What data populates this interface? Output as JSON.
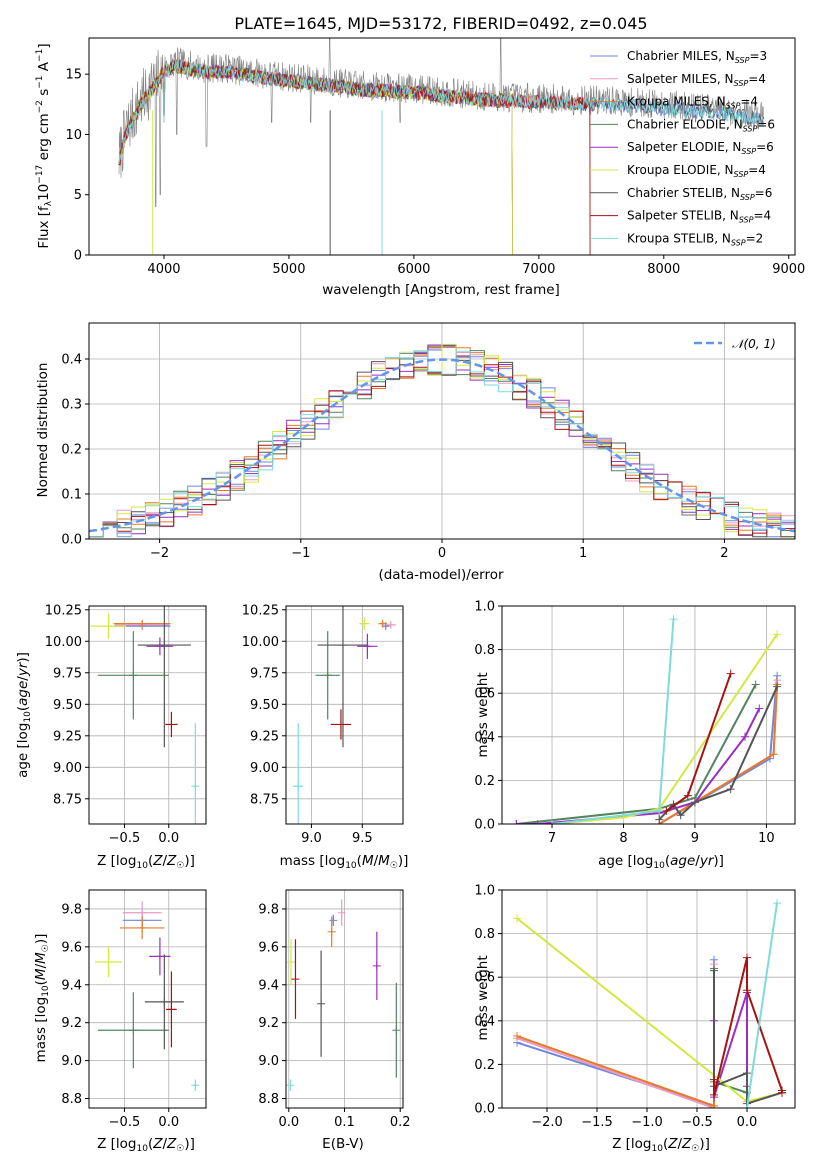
{
  "colors": {
    "Chabrier MILES": "#6f86dc",
    "Salpeter MILES": "#e89bc4",
    "Kroupa MILES": "#e8792b",
    "Chabrier ELODIE": "#52845f",
    "Salpeter ELODIE": "#9a2fbf",
    "Kroupa ELODIE": "#d4e842",
    "Chabrier STELIB": "#555555",
    "Salpeter STELIB": "#a61313",
    "Kroupa STELIB": "#7fdadb"
  },
  "chart_data": [
    {
      "id": "spectrum",
      "type": "line",
      "title": "PLATE=1645, MJD=53172, FIBERID=0492, z=0.045",
      "xlabel": "wavelength [Angstrom, rest frame]",
      "ylabel": "Flux [fλ10⁻¹⁷ erg cm⁻² s⁻¹ A⁻¹]",
      "xlim": [
        3400,
        9050
      ],
      "ylim": [
        0,
        18
      ],
      "xticks": [
        4000,
        5000,
        6000,
        7000,
        8000,
        9000
      ],
      "yticks": [
        0,
        5,
        10,
        15
      ],
      "legend_position": "top-right",
      "data_color": "#808080",
      "data_continuum": [
        [
          3640,
          8.0
        ],
        [
          3700,
          10.5
        ],
        [
          3800,
          12.5
        ],
        [
          3900,
          14.0
        ],
        [
          4000,
          15.5
        ],
        [
          4100,
          16.0
        ],
        [
          4300,
          15.5
        ],
        [
          4500,
          15.5
        ],
        [
          4800,
          15.0
        ],
        [
          5200,
          14.5
        ],
        [
          5600,
          14.0
        ],
        [
          6000,
          13.8
        ],
        [
          6500,
          13.2
        ],
        [
          7000,
          13.0
        ],
        [
          7500,
          12.8
        ],
        [
          8000,
          12.5
        ],
        [
          8500,
          12.0
        ],
        [
          8800,
          11.5
        ]
      ],
      "legend": [
        {
          "model": "Chabrier MILES",
          "label": "Chabrier MILES, N",
          "sub": "SSP",
          "tail": "=3",
          "xmax": 8800
        },
        {
          "model": "Salpeter MILES",
          "label": "Salpeter MILES, N",
          "sub": "SSP",
          "tail": "=4",
          "xmax": 7410
        },
        {
          "model": "Kroupa MILES",
          "label": "Kroupa MILES, N",
          "sub": "SSP",
          "tail": "=4",
          "xmax": 7410
        },
        {
          "model": "Chabrier ELODIE",
          "label": "Chabrier ELODIE, N",
          "sub": "SSP",
          "tail": "=6",
          "xmax": 6790
        },
        {
          "model": "Salpeter ELODIE",
          "label": "Salpeter ELODIE, N",
          "sub": "SSP",
          "tail": "=6",
          "xmax": 6790
        },
        {
          "model": "Kroupa ELODIE",
          "label": "Kroupa ELODIE, N",
          "sub": "SSP",
          "tail": "=4",
          "xmax": 6790
        },
        {
          "model": "Chabrier STELIB",
          "label": "Chabrier STELIB, N",
          "sub": "SSP",
          "tail": "=6",
          "xmax": 8800
        },
        {
          "model": "Salpeter STELIB",
          "label": "Salpeter STELIB, N",
          "sub": "SSP",
          "tail": "=4",
          "xmax": 7410
        },
        {
          "model": "Kroupa STELIB",
          "label": "Kroupa STELIB, N",
          "sub": "SSP",
          "tail": "=2",
          "xmax": 8800
        }
      ]
    },
    {
      "id": "residuals",
      "type": "histogram",
      "xlabel": "(data-model)/error",
      "ylabel": "Normed distribution",
      "xlim": [
        -2.5,
        2.5
      ],
      "ylim": [
        0,
        0.48
      ],
      "xticks": [
        -2,
        -1,
        0,
        1,
        2
      ],
      "yticks": [
        0.0,
        0.1,
        0.2,
        0.3,
        0.4
      ],
      "grid": true,
      "bin_width": 0.1,
      "bin_start": -2.5,
      "reference_curve": {
        "label": "𝒩(0, 1)",
        "mean": 0,
        "sigma": 1,
        "color": "#6495ed"
      },
      "legend_position": "top-right"
    },
    {
      "id": "age-vs-z",
      "type": "errorbar",
      "xlabel": "Z [log₁₀(Z/Z☉)]",
      "ylabel": "age  [log₁₀(age/yr)]",
      "xlim": [
        -0.9,
        0.42
      ],
      "ylim": [
        8.55,
        10.28
      ],
      "xticks": [
        -0.5,
        0.0
      ],
      "yticks": [
        8.75,
        9.0,
        9.25,
        9.5,
        9.75,
        10.0,
        10.25
      ],
      "grid": true,
      "points": [
        {
          "model": "Chabrier MILES",
          "x": -0.3,
          "y": 10.12,
          "xerr": 0.32,
          "yerr": 0.02
        },
        {
          "model": "Salpeter MILES",
          "x": -0.3,
          "y": 10.13,
          "xerr": 0.31,
          "yerr": 0.02
        },
        {
          "model": "Kroupa MILES",
          "x": -0.3,
          "y": 10.14,
          "xerr": 0.32,
          "yerr": 0.02
        },
        {
          "model": "Chabrier ELODIE",
          "x": -0.4,
          "y": 9.73,
          "xerr": 0.4,
          "yerr": 0.35
        },
        {
          "model": "Salpeter ELODIE",
          "x": -0.1,
          "y": 9.96,
          "xerr": 0.15,
          "yerr": 0.07
        },
        {
          "model": "Kroupa ELODIE",
          "x": -0.68,
          "y": 10.12,
          "xerr": 0.2,
          "yerr": 0.1
        },
        {
          "model": "Chabrier STELIB",
          "x": -0.05,
          "y": 9.97,
          "xerr": 0.3,
          "yerr": 0.81
        },
        {
          "model": "Salpeter STELIB",
          "x": 0.03,
          "y": 9.34,
          "xerr": 0.07,
          "yerr": 0.1
        },
        {
          "model": "Kroupa STELIB",
          "x": 0.3,
          "y": 8.85,
          "xerr": 0.02,
          "yerr": 0.5
        }
      ]
    },
    {
      "id": "age-vs-mass",
      "type": "errorbar",
      "xlabel": "mass [log₁₀(M/M☉)]",
      "ylabel": "",
      "xlim": [
        8.75,
        9.9
      ],
      "ylim": [
        8.55,
        10.28
      ],
      "xticks": [
        9.0,
        9.5
      ],
      "yticks": [
        8.75,
        9.0,
        9.25,
        9.5,
        9.75,
        10.0,
        10.25
      ],
      "grid": true,
      "points": [
        {
          "model": "Chabrier MILES",
          "x": 9.73,
          "y": 10.12,
          "xerr": 0.03,
          "yerr": 0.02
        },
        {
          "model": "Salpeter MILES",
          "x": 9.78,
          "y": 10.13,
          "xerr": 0.05,
          "yerr": 0.02
        },
        {
          "model": "Kroupa MILES",
          "x": 9.7,
          "y": 10.14,
          "xerr": 0.04,
          "yerr": 0.02
        },
        {
          "model": "Chabrier ELODIE",
          "x": 9.16,
          "y": 9.73,
          "xerr": 0.12,
          "yerr": 0.35
        },
        {
          "model": "Salpeter ELODIE",
          "x": 9.55,
          "y": 9.96,
          "xerr": 0.1,
          "yerr": 0.1
        },
        {
          "model": "Kroupa ELODIE",
          "x": 9.52,
          "y": 10.14,
          "xerr": 0.05,
          "yerr": 0.05
        },
        {
          "model": "Chabrier STELIB",
          "x": 9.31,
          "y": 9.97,
          "xerr": 0.25,
          "yerr": 0.81
        },
        {
          "model": "Salpeter STELIB",
          "x": 9.29,
          "y": 9.34,
          "xerr": 0.1,
          "yerr": 0.12
        },
        {
          "model": "Kroupa STELIB",
          "x": 8.87,
          "y": 8.85,
          "xerr": 0.05,
          "yerr": 0.5
        }
      ]
    },
    {
      "id": "mass-weight-vs-age",
      "type": "line",
      "xlabel": "age  [log₁₀(age/yr)]",
      "ylabel": "mass weight",
      "xlim": [
        6.3,
        10.4
      ],
      "ylim": [
        0,
        1
      ],
      "xticks": [
        7,
        8,
        9,
        10
      ],
      "yticks": [
        0.0,
        0.2,
        0.4,
        0.6,
        0.8,
        1.0
      ],
      "grid": true,
      "series": [
        {
          "model": "Chabrier MILES",
          "x": [
            8.5,
            10.05,
            10.15
          ],
          "y": [
            0.0,
            0.3,
            0.68
          ]
        },
        {
          "model": "Salpeter MILES",
          "x": [
            8.5,
            10.1,
            10.15
          ],
          "y": [
            0.0,
            0.32,
            0.66
          ]
        },
        {
          "model": "Kroupa MILES",
          "x": [
            8.5,
            10.1,
            10.15
          ],
          "y": [
            0.0,
            0.32,
            0.64
          ]
        },
        {
          "model": "Chabrier ELODIE",
          "x": [
            6.5,
            8.5,
            9.0,
            9.85
          ],
          "y": [
            0.0,
            0.07,
            0.12,
            0.64
          ]
        },
        {
          "model": "Salpeter ELODIE",
          "x": [
            6.5,
            6.8,
            8.5,
            9.0,
            9.7,
            9.9
          ],
          "y": [
            0.0,
            0.0,
            0.05,
            0.1,
            0.4,
            0.53
          ]
        },
        {
          "model": "Kroupa ELODIE",
          "x": [
            7.0,
            8.0,
            8.5,
            10.15
          ],
          "y": [
            0.0,
            0.03,
            0.07,
            0.87
          ]
        },
        {
          "model": "Chabrier STELIB",
          "x": [
            8.5,
            8.7,
            8.8,
            9.0,
            9.5,
            10.15
          ],
          "y": [
            0.02,
            0.09,
            0.04,
            0.1,
            0.16,
            0.63
          ]
        },
        {
          "model": "Salpeter STELIB",
          "x": [
            8.6,
            8.9,
            9.5
          ],
          "y": [
            0.06,
            0.13,
            0.69
          ]
        },
        {
          "model": "Kroupa STELIB",
          "x": [
            7.0,
            8.5,
            8.7
          ],
          "y": [
            0.0,
            0.06,
            0.94
          ]
        }
      ]
    },
    {
      "id": "mass-vs-z",
      "type": "errorbar",
      "xlabel": "Z [log₁₀(Z/Z☉)]",
      "ylabel": "mass [log₁₀(M/M☉)]",
      "xlim": [
        -0.9,
        0.42
      ],
      "ylim": [
        8.75,
        9.9
      ],
      "xticks": [
        -0.5,
        0.0
      ],
      "yticks": [
        8.8,
        9.0,
        9.2,
        9.4,
        9.6,
        9.8
      ],
      "grid": true,
      "points": [
        {
          "model": "Chabrier MILES",
          "x": -0.3,
          "y": 9.74,
          "xerr": 0.22,
          "yerr": 0.03
        },
        {
          "model": "Salpeter MILES",
          "x": -0.3,
          "y": 9.78,
          "xerr": 0.22,
          "yerr": 0.06
        },
        {
          "model": "Kroupa MILES",
          "x": -0.3,
          "y": 9.7,
          "xerr": 0.25,
          "yerr": 0.06
        },
        {
          "model": "Chabrier ELODIE",
          "x": -0.4,
          "y": 9.16,
          "xerr": 0.4,
          "yerr": 0.2
        },
        {
          "model": "Salpeter ELODIE",
          "x": -0.1,
          "y": 9.55,
          "xerr": 0.12,
          "yerr": 0.1
        },
        {
          "model": "Kroupa ELODIE",
          "x": -0.68,
          "y": 9.52,
          "xerr": 0.15,
          "yerr": 0.08
        },
        {
          "model": "Chabrier STELIB",
          "x": -0.05,
          "y": 9.31,
          "xerr": 0.22,
          "yerr": 0.25
        },
        {
          "model": "Salpeter STELIB",
          "x": 0.03,
          "y": 9.27,
          "xerr": 0.06,
          "yerr": 0.2
        },
        {
          "model": "Kroupa STELIB",
          "x": 0.3,
          "y": 8.87,
          "xerr": 0.02,
          "yerr": 0.03
        }
      ]
    },
    {
      "id": "mass-vs-ebv",
      "type": "errorbar",
      "xlabel": "E(B-V)",
      "ylabel": "",
      "xlim": [
        -0.005,
        0.205
      ],
      "ylim": [
        8.75,
        9.9
      ],
      "xticks": [
        0.0,
        0.1,
        0.2
      ],
      "yticks": [
        8.8,
        9.0,
        9.2,
        9.4,
        9.6,
        9.8
      ],
      "grid": true,
      "points": [
        {
          "model": "Chabrier MILES",
          "x": 0.08,
          "y": 9.74,
          "xerr": 0,
          "yerr": 0.03
        },
        {
          "model": "Salpeter MILES",
          "x": 0.095,
          "y": 9.78,
          "xerr": 0,
          "yerr": 0.07
        },
        {
          "model": "Kroupa MILES",
          "x": 0.077,
          "y": 9.68,
          "xerr": 0,
          "yerr": 0.08
        },
        {
          "model": "Chabrier ELODIE",
          "x": 0.193,
          "y": 9.16,
          "xerr": 0,
          "yerr": 0.25
        },
        {
          "model": "Salpeter ELODIE",
          "x": 0.158,
          "y": 9.5,
          "xerr": 0,
          "yerr": 0.18
        },
        {
          "model": "Kroupa ELODIE",
          "x": 0.004,
          "y": 9.52,
          "xerr": 0,
          "yerr": 0.12
        },
        {
          "model": "Chabrier STELIB",
          "x": 0.058,
          "y": 9.3,
          "xerr": 0,
          "yerr": 0.28
        },
        {
          "model": "Salpeter STELIB",
          "x": 0.012,
          "y": 9.43,
          "xerr": 0,
          "yerr": 0.21
        },
        {
          "model": "Kroupa STELIB",
          "x": 0.003,
          "y": 8.87,
          "xerr": 0,
          "yerr": 0.03
        }
      ]
    },
    {
      "id": "mass-weight-vs-z",
      "type": "line",
      "xlabel": "Z [log₁₀(Z/Z☉)]",
      "ylabel": "mass weight",
      "xlim": [
        -2.45,
        0.48
      ],
      "ylim": [
        0,
        1
      ],
      "xticks": [
        -2.0,
        -1.5,
        -1.0,
        -0.5,
        0.0
      ],
      "yticks": [
        0.0,
        0.2,
        0.4,
        0.6,
        0.8,
        1.0
      ],
      "grid": true,
      "series": [
        {
          "model": "Chabrier MILES",
          "x": [
            -2.3,
            -0.33,
            -0.33
          ],
          "y": [
            0.3,
            0.01,
            0.68
          ]
        },
        {
          "model": "Salpeter MILES",
          "x": [
            -2.3,
            -0.33,
            -0.33
          ],
          "y": [
            0.32,
            0.0,
            0.66
          ]
        },
        {
          "model": "Kroupa MILES",
          "x": [
            -2.3,
            -0.33,
            -0.33
          ],
          "y": [
            0.33,
            0.01,
            0.64
          ]
        },
        {
          "model": "Chabrier ELODIE",
          "x": [
            -0.33,
            -0.33,
            0.0,
            0.0
          ],
          "y": [
            0.64,
            0.12,
            0.07,
            0.0
          ]
        },
        {
          "model": "Salpeter ELODIE",
          "x": [
            -0.33,
            -0.33,
            0.0,
            0.0
          ],
          "y": [
            0.4,
            0.05,
            0.53,
            0.1
          ]
        },
        {
          "model": "Kroupa ELODIE",
          "x": [
            -2.3,
            0.0,
            0.35
          ],
          "y": [
            0.87,
            0.03,
            0.07
          ]
        },
        {
          "model": "Chabrier STELIB",
          "x": [
            -0.33,
            -0.33,
            0.0,
            0.0,
            0.35
          ],
          "y": [
            0.63,
            0.1,
            0.16,
            0.02,
            0.07
          ]
        },
        {
          "model": "Salpeter STELIB",
          "x": [
            -0.33,
            -0.33,
            0.0,
            0.0,
            0.35,
            0.35
          ],
          "y": [
            0.13,
            0.06,
            0.69,
            0.54,
            0.08,
            0.07
          ]
        },
        {
          "model": "Kroupa STELIB",
          "x": [
            0.0,
            0.3
          ],
          "y": [
            0.0,
            0.94
          ]
        }
      ]
    }
  ]
}
